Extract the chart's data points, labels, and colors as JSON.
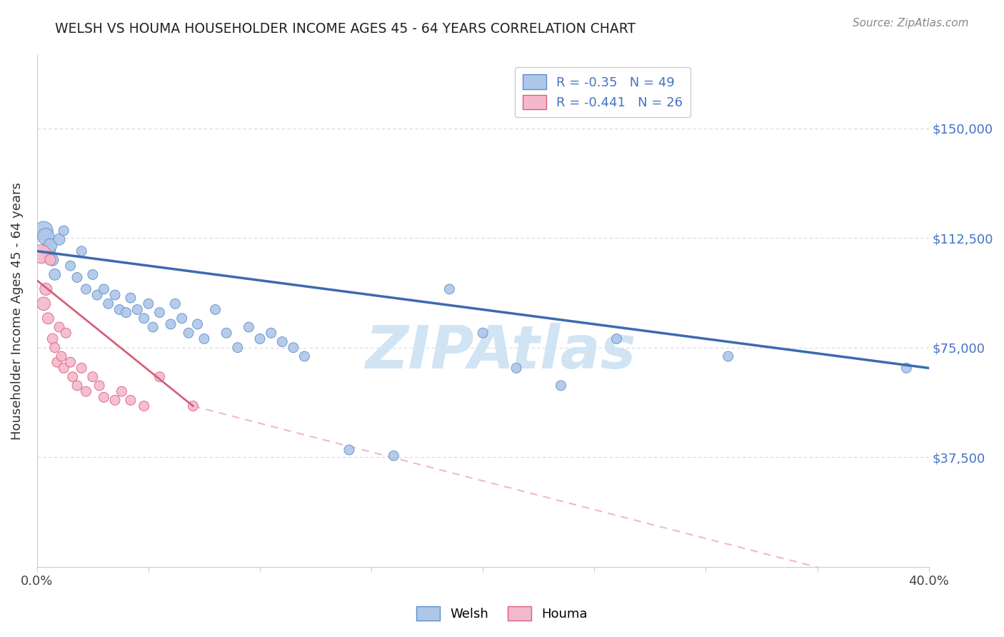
{
  "title": "WELSH VS HOUMA HOUSEHOLDER INCOME AGES 45 - 64 YEARS CORRELATION CHART",
  "source": "Source: ZipAtlas.com",
  "ylabel": "Householder Income Ages 45 - 64 years",
  "xlim": [
    0.0,
    0.4
  ],
  "ylim": [
    0,
    175000
  ],
  "yticks": [
    0,
    37500,
    75000,
    112500,
    150000
  ],
  "ytick_labels": [
    "",
    "$37,500",
    "$75,000",
    "$112,500",
    "$150,000"
  ],
  "xticks": [
    0.0,
    0.05,
    0.1,
    0.15,
    0.2,
    0.25,
    0.3,
    0.35,
    0.4
  ],
  "xtick_labels": [
    "0.0%",
    "",
    "",
    "",
    "",
    "",
    "",
    "",
    "40.0%"
  ],
  "welsh_color": "#aec6e8",
  "houma_color": "#f4b8cc",
  "welsh_edge_color": "#5b8fc9",
  "houma_edge_color": "#d9607a",
  "welsh_line_color": "#3c6ab0",
  "houma_line_color": "#d4607a",
  "houma_dash_color": "#f0b8c8",
  "label_color": "#4472c4",
  "welsh_R": -0.35,
  "welsh_N": 49,
  "houma_R": -0.441,
  "houma_N": 26,
  "welsh_x": [
    0.003,
    0.004,
    0.005,
    0.006,
    0.007,
    0.008,
    0.01,
    0.012,
    0.015,
    0.018,
    0.02,
    0.022,
    0.025,
    0.027,
    0.03,
    0.032,
    0.035,
    0.037,
    0.04,
    0.042,
    0.045,
    0.048,
    0.05,
    0.052,
    0.055,
    0.06,
    0.062,
    0.065,
    0.068,
    0.072,
    0.075,
    0.08,
    0.085,
    0.09,
    0.095,
    0.1,
    0.105,
    0.11,
    0.115,
    0.12,
    0.14,
    0.16,
    0.185,
    0.2,
    0.215,
    0.235,
    0.26,
    0.31,
    0.39
  ],
  "welsh_y": [
    115000,
    113000,
    108000,
    110000,
    105000,
    100000,
    112000,
    115000,
    103000,
    99000,
    108000,
    95000,
    100000,
    93000,
    95000,
    90000,
    93000,
    88000,
    87000,
    92000,
    88000,
    85000,
    90000,
    82000,
    87000,
    83000,
    90000,
    85000,
    80000,
    83000,
    78000,
    88000,
    80000,
    75000,
    82000,
    78000,
    80000,
    77000,
    75000,
    72000,
    40000,
    38000,
    95000,
    80000,
    68000,
    62000,
    78000,
    72000,
    68000
  ],
  "welsh_sizes": [
    350,
    280,
    220,
    180,
    140,
    130,
    130,
    100,
    100,
    100,
    100,
    100,
    100,
    100,
    100,
    100,
    100,
    100,
    100,
    100,
    100,
    100,
    100,
    100,
    100,
    100,
    100,
    100,
    100,
    100,
    100,
    100,
    100,
    100,
    100,
    100,
    100,
    100,
    100,
    100,
    100,
    100,
    100,
    100,
    100,
    100,
    100,
    100,
    100
  ],
  "houma_x": [
    0.002,
    0.003,
    0.004,
    0.005,
    0.006,
    0.007,
    0.008,
    0.009,
    0.01,
    0.011,
    0.012,
    0.013,
    0.015,
    0.016,
    0.018,
    0.02,
    0.022,
    0.025,
    0.028,
    0.03,
    0.035,
    0.038,
    0.042,
    0.048,
    0.055,
    0.07
  ],
  "houma_y": [
    107000,
    90000,
    95000,
    85000,
    105000,
    78000,
    75000,
    70000,
    82000,
    72000,
    68000,
    80000,
    70000,
    65000,
    62000,
    68000,
    60000,
    65000,
    62000,
    58000,
    57000,
    60000,
    57000,
    55000,
    65000,
    55000
  ],
  "houma_sizes": [
    350,
    180,
    150,
    130,
    120,
    110,
    100,
    100,
    100,
    100,
    100,
    100,
    100,
    100,
    100,
    100,
    100,
    100,
    100,
    100,
    100,
    100,
    100,
    100,
    100,
    100
  ],
  "background_color": "#ffffff",
  "grid_color": "#d8d8d8",
  "watermark_text": "ZIPAtlas",
  "watermark_color": "#d0e4f4"
}
